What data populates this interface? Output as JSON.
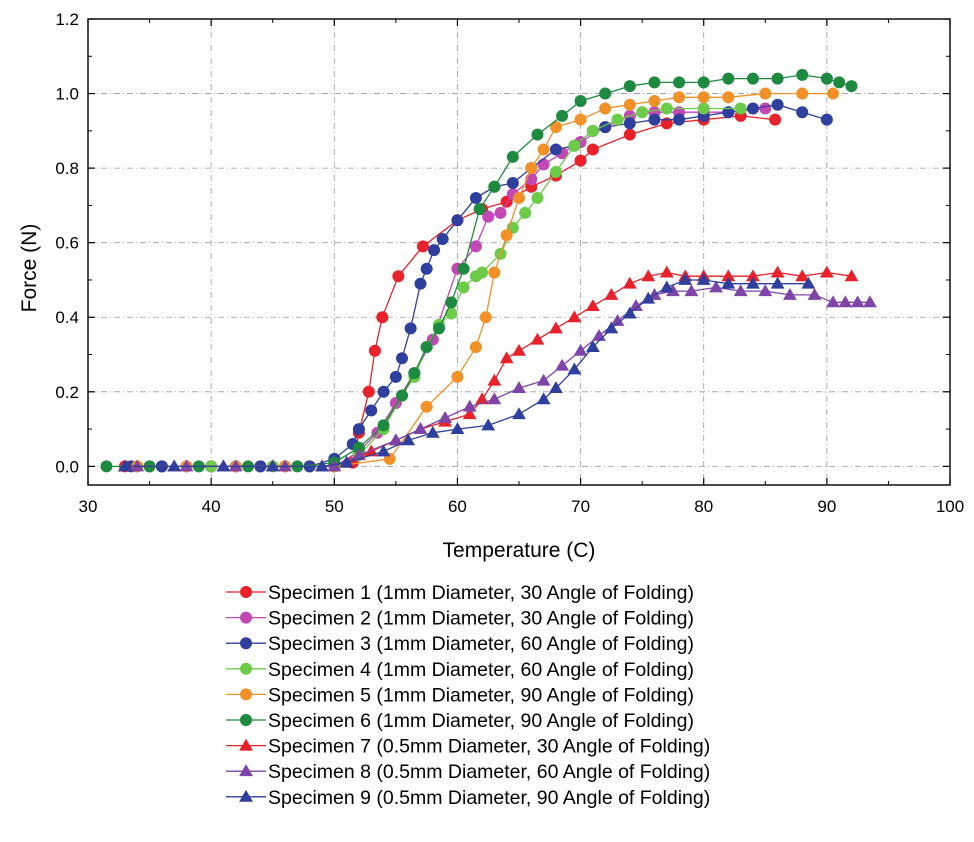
{
  "chart_data": {
    "type": "line",
    "title": "",
    "xlabel": "Temperature (C)",
    "ylabel": "Force (N)",
    "xlim": [
      30,
      100
    ],
    "ylim": [
      -0.05,
      1.2
    ],
    "x_ticks": [
      30,
      40,
      50,
      60,
      70,
      80,
      90,
      100
    ],
    "y_ticks": [
      0.0,
      0.2,
      0.4,
      0.6,
      0.8,
      1.0,
      1.2
    ],
    "x_tick_labels": [
      "30",
      "40",
      "50",
      "60",
      "70",
      "80",
      "90",
      "100"
    ],
    "y_tick_labels": [
      "0.0",
      "0.2",
      "0.4",
      "0.6",
      "0.8",
      "1.0",
      "1.2"
    ],
    "grid": true,
    "legend_position": "below",
    "series": [
      {
        "name": "Specimen 1 (1mm Diameter, 30 Angle of Folding)",
        "color": "#e8212b",
        "marker": "circle",
        "x": [
          33,
          36,
          40,
          44,
          48,
          50,
          51.5,
          52,
          52.8,
          53.3,
          53.9,
          55.2,
          57.2,
          60,
          62,
          64,
          66,
          68,
          70,
          71,
          74,
          77,
          80,
          83,
          85.8
        ],
        "y": [
          0,
          0,
          0,
          0,
          0,
          0,
          0.01,
          0.09,
          0.2,
          0.31,
          0.4,
          0.51,
          0.59,
          0.66,
          0.69,
          0.71,
          0.75,
          0.78,
          0.82,
          0.85,
          0.89,
          0.92,
          0.93,
          0.94,
          0.93
        ]
      },
      {
        "name": "Specimen 2 (1mm Diameter, 30 Angle of Folding)",
        "color": "#c347b4",
        "marker": "circle",
        "x": [
          34,
          38,
          42,
          46,
          50,
          52,
          53.5,
          55,
          56.5,
          58,
          60,
          61.5,
          62.5,
          63.5,
          64.5,
          66,
          67,
          68.5,
          70,
          72,
          74,
          76,
          78,
          80,
          82,
          85
        ],
        "y": [
          0,
          0,
          0,
          0,
          0,
          0.04,
          0.09,
          0.17,
          0.25,
          0.34,
          0.53,
          0.59,
          0.67,
          0.68,
          0.73,
          0.77,
          0.81,
          0.84,
          0.87,
          0.91,
          0.94,
          0.95,
          0.95,
          0.95,
          0.95,
          0.96
        ]
      },
      {
        "name": "Specimen 3 (1mm Diameter, 60 Angle of Folding)",
        "color": "#2e3f9e",
        "marker": "circle",
        "x": [
          33.5,
          36,
          40,
          44,
          48,
          50,
          51.5,
          52,
          53,
          54,
          55,
          55.5,
          56.2,
          57,
          57.5,
          58.1,
          58.8,
          60,
          61.5,
          63,
          64.5,
          66,
          68,
          69.5,
          71,
          72,
          74,
          76,
          78,
          80,
          82,
          84,
          86,
          88,
          90
        ],
        "y": [
          0,
          0,
          0,
          0,
          0,
          0.02,
          0.06,
          0.1,
          0.15,
          0.2,
          0.24,
          0.29,
          0.37,
          0.49,
          0.53,
          0.58,
          0.61,
          0.66,
          0.72,
          0.75,
          0.76,
          0.8,
          0.85,
          0.86,
          0.9,
          0.91,
          0.92,
          0.93,
          0.93,
          0.94,
          0.95,
          0.96,
          0.97,
          0.95,
          0.93
        ]
      },
      {
        "name": "Specimen 4 (1mm Diameter, 60 Angle of Folding)",
        "color": "#6ccb48",
        "marker": "circle",
        "x": [
          35,
          40,
          45,
          50,
          52,
          54,
          55.5,
          56.5,
          57.5,
          58.5,
          59.5,
          60.5,
          61.5,
          62,
          63.5,
          64.5,
          65.5,
          66.5,
          68,
          69.5,
          71,
          73,
          75,
          77,
          80,
          83
        ],
        "y": [
          0,
          0,
          0,
          0,
          0.03,
          0.1,
          0.19,
          0.24,
          0.32,
          0.38,
          0.41,
          0.48,
          0.51,
          0.52,
          0.57,
          0.64,
          0.68,
          0.72,
          0.79,
          0.86,
          0.9,
          0.93,
          0.95,
          0.96,
          0.96,
          0.96
        ]
      },
      {
        "name": "Specimen 5 (1mm Diameter, 90 Angle of Folding)",
        "color": "#f39129",
        "marker": "circle",
        "x": [
          34,
          38,
          42,
          46,
          50,
          54.5,
          57.5,
          60,
          61.5,
          62.3,
          63,
          64,
          65,
          66,
          67,
          68,
          70,
          72,
          74,
          76,
          78,
          80,
          82,
          85,
          88,
          90.5
        ],
        "y": [
          0,
          0,
          0,
          0,
          0,
          0.02,
          0.16,
          0.24,
          0.32,
          0.4,
          0.52,
          0.62,
          0.72,
          0.8,
          0.85,
          0.91,
          0.93,
          0.96,
          0.97,
          0.98,
          0.99,
          0.99,
          0.99,
          1.0,
          1.0,
          1.0
        ]
      },
      {
        "name": "Specimen 6 (1mm Diameter, 90 Angle of Folding)",
        "color": "#1d8a3f",
        "marker": "circle",
        "x": [
          31.5,
          35,
          39,
          43,
          47,
          50,
          52,
          54,
          55.5,
          56.5,
          57.5,
          58.5,
          59.5,
          60.5,
          61.8,
          63,
          64.5,
          66.5,
          68.5,
          70,
          72,
          74,
          76,
          78,
          80,
          82,
          84,
          86,
          88,
          90,
          91,
          92
        ],
        "y": [
          0,
          0,
          0,
          0,
          0,
          0.01,
          0.05,
          0.11,
          0.19,
          0.25,
          0.32,
          0.37,
          0.44,
          0.53,
          0.69,
          0.75,
          0.83,
          0.89,
          0.94,
          0.98,
          1.0,
          1.02,
          1.03,
          1.03,
          1.03,
          1.04,
          1.04,
          1.04,
          1.05,
          1.04,
          1.03,
          1.02
        ]
      },
      {
        "name": "Specimen 7 (0.5mm Diameter, 30 Angle of Folding)",
        "color": "#e8212b",
        "marker": "triangle",
        "x": [
          33,
          37,
          41,
          45,
          49,
          51,
          53,
          55,
          57,
          59,
          61,
          62,
          63,
          64,
          65,
          66.5,
          68,
          69.5,
          71,
          72.5,
          74,
          75.5,
          77,
          78.5,
          80,
          82,
          84,
          86,
          88,
          90,
          92
        ],
        "y": [
          0,
          0,
          0,
          0,
          0,
          0.01,
          0.04,
          0.07,
          0.1,
          0.12,
          0.14,
          0.18,
          0.23,
          0.29,
          0.31,
          0.34,
          0.37,
          0.4,
          0.43,
          0.46,
          0.49,
          0.51,
          0.52,
          0.51,
          0.51,
          0.51,
          0.51,
          0.52,
          0.51,
          0.52,
          0.51
        ]
      },
      {
        "name": "Specimen 8 (0.5mm Diameter, 60 Angle of Folding)",
        "color": "#7e44a8",
        "marker": "triangle",
        "x": [
          34,
          38,
          42,
          46,
          50,
          52,
          55,
          57,
          59,
          61,
          63,
          65,
          67,
          68.5,
          70,
          71.5,
          73,
          74.5,
          76,
          77.5,
          79,
          81,
          83,
          85,
          87,
          89,
          90.5,
          91.5,
          92.5,
          93.5
        ],
        "y": [
          0,
          0,
          0,
          0,
          0,
          0.03,
          0.07,
          0.1,
          0.13,
          0.16,
          0.18,
          0.21,
          0.23,
          0.27,
          0.31,
          0.35,
          0.39,
          0.43,
          0.46,
          0.47,
          0.47,
          0.48,
          0.47,
          0.47,
          0.46,
          0.46,
          0.44,
          0.44,
          0.44,
          0.44
        ]
      },
      {
        "name": "Specimen 9 (0.5mm Diameter, 90 Angle of Folding)",
        "color": "#2e3f9e",
        "marker": "triangle",
        "x": [
          33,
          37,
          41,
          45,
          49,
          51,
          54,
          56,
          58,
          60,
          62.5,
          65,
          67,
          68,
          69.5,
          71,
          72.5,
          74,
          75.5,
          77,
          78.5,
          80,
          82,
          84,
          86,
          88.5
        ],
        "y": [
          0,
          0,
          0,
          0,
          0,
          0.01,
          0.04,
          0.07,
          0.09,
          0.1,
          0.11,
          0.14,
          0.18,
          0.21,
          0.26,
          0.32,
          0.37,
          0.41,
          0.45,
          0.48,
          0.5,
          0.5,
          0.49,
          0.49,
          0.49,
          0.49
        ]
      }
    ]
  }
}
